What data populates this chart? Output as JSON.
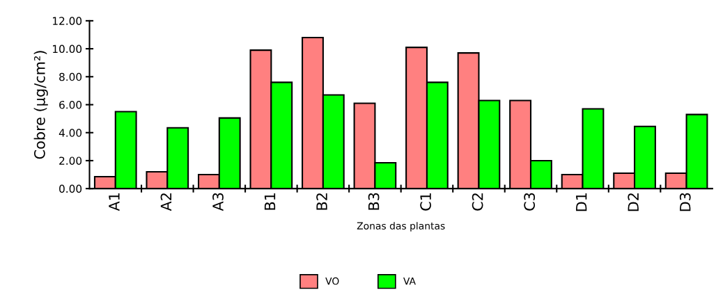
{
  "chart_data": {
    "type": "bar",
    "xlabel": "Zonas das plantas",
    "ylabel": "Cobre (µg/cm²)",
    "categories": [
      "A1",
      "A2",
      "A3",
      "B1",
      "B2",
      "B3",
      "C1",
      "C2",
      "C3",
      "D1",
      "D2",
      "D3"
    ],
    "series": [
      {
        "name": "VO",
        "color": "#ff8080",
        "values": [
          0.85,
          1.2,
          1.0,
          9.9,
          10.8,
          6.1,
          10.1,
          9.7,
          6.3,
          1.0,
          1.1,
          1.1
        ]
      },
      {
        "name": "VA",
        "color": "#00ff00",
        "values": [
          5.5,
          4.35,
          5.05,
          7.6,
          6.7,
          1.85,
          7.6,
          6.3,
          2.0,
          5.7,
          4.45,
          5.3
        ]
      }
    ],
    "ylim": [
      0,
      12
    ],
    "yticks": [
      {
        "value": 0,
        "label": "0.00"
      },
      {
        "value": 2,
        "label": "2.00"
      },
      {
        "value": 4,
        "label": "4.00"
      },
      {
        "value": 6,
        "label": "6.00"
      },
      {
        "value": 8,
        "label": "8.00"
      },
      {
        "value": 10,
        "label": "10.00"
      },
      {
        "value": 12,
        "label": "12.00"
      }
    ],
    "grid": false,
    "legend": "bottom"
  }
}
